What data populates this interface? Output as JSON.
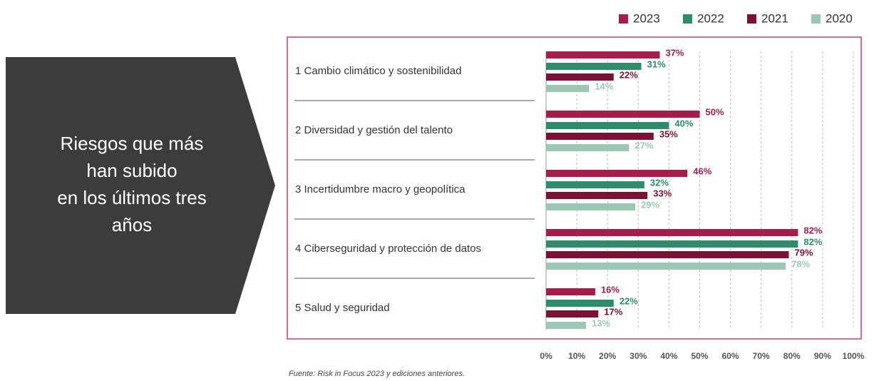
{
  "chart_data": {
    "type": "bar",
    "orientation": "horizontal",
    "side_text": [
      "Riesgos que más",
      "han subido",
      "en los últimos tres",
      "años"
    ],
    "categories": [
      "1 Cambio climático y sostenibilidad",
      "2 Diversidad y gestión del talento",
      "3 Incertidumbre macro y geopolítica",
      "4 Ciberseguridad y protección de datos",
      "5 Salud y seguridad"
    ],
    "series": [
      {
        "name": "2023",
        "color": "#a51e4b",
        "values": [
          37,
          50,
          46,
          82,
          16
        ],
        "value_labels": [
          "37%",
          "50%",
          "46%",
          "82%",
          "16%"
        ]
      },
      {
        "name": "2022",
        "color": "#2f8c6b",
        "values": [
          31,
          40,
          32,
          82,
          22
        ],
        "value_labels": [
          "31%",
          "40%",
          "32%",
          "82%",
          "22%"
        ]
      },
      {
        "name": "2021",
        "color": "#7b1232",
        "values": [
          22,
          35,
          33,
          79,
          17
        ],
        "value_labels": [
          "22%",
          "35%",
          "33%",
          "79%",
          "17%"
        ]
      },
      {
        "name": "2020",
        "color": "#9cc8b3",
        "values": [
          14,
          27,
          29,
          78,
          13
        ],
        "value_labels": [
          "14%",
          "27%",
          "29%",
          "78%",
          "13%"
        ]
      }
    ],
    "xlim": [
      0,
      100
    ],
    "xticks": [
      {
        "value": 0,
        "label": "0%"
      },
      {
        "value": 10,
        "label": "10%"
      },
      {
        "value": 20,
        "label": "20%"
      },
      {
        "value": 30,
        "label": "30%"
      },
      {
        "value": 40,
        "label": "40%"
      },
      {
        "value": 50,
        "label": "50%"
      },
      {
        "value": 60,
        "label": "60%"
      },
      {
        "value": 70,
        "label": "70%"
      },
      {
        "value": 80,
        "label": "80%"
      },
      {
        "value": 90,
        "label": "90%"
      },
      {
        "value": 100,
        "label": "100%"
      }
    ],
    "grid": true,
    "legend": "top-right",
    "source": "Fuente: Risk in Focus 2023 y ediciones anteriores."
  }
}
